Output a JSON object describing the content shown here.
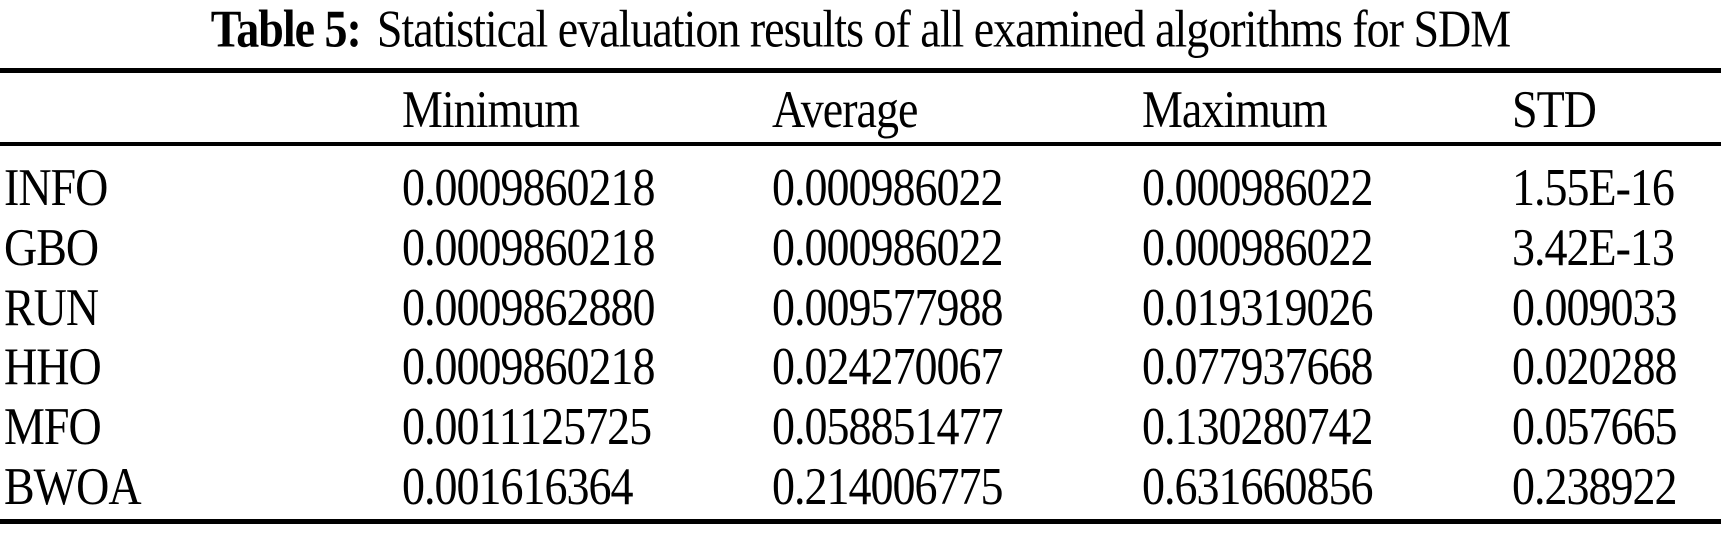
{
  "caption": {
    "label": "Table 5:",
    "text": "Statistical evaluation results of all examined algorithms for SDM"
  },
  "table": {
    "headers": [
      "Minimum",
      "Average",
      "Maximum",
      "STD"
    ],
    "rows": [
      {
        "name": "INFO",
        "minimum": "0.0009860218",
        "average": "0.000986022",
        "maximum": "0.000986022",
        "std": "1.55E-16"
      },
      {
        "name": "GBO",
        "minimum": "0.0009860218",
        "average": "0.000986022",
        "maximum": "0.000986022",
        "std": "3.42E-13"
      },
      {
        "name": "RUN",
        "minimum": "0.0009862880",
        "average": "0.009577988",
        "maximum": "0.019319026",
        "std": "0.009033"
      },
      {
        "name": "HHO",
        "minimum": "0.0009860218",
        "average": "0.024270067",
        "maximum": "0.077937668",
        "std": "0.020288"
      },
      {
        "name": "MFO",
        "minimum": "0.0011125725",
        "average": "0.058851477",
        "maximum": "0.130280742",
        "std": "0.057665"
      },
      {
        "name": "BWOA",
        "minimum": "0.001616364",
        "average": "0.214006775",
        "maximum": "0.631660856",
        "std": "0.238922"
      }
    ]
  },
  "colors": {
    "background": "#ffffff",
    "text": "#000000",
    "rule": "#000000"
  }
}
